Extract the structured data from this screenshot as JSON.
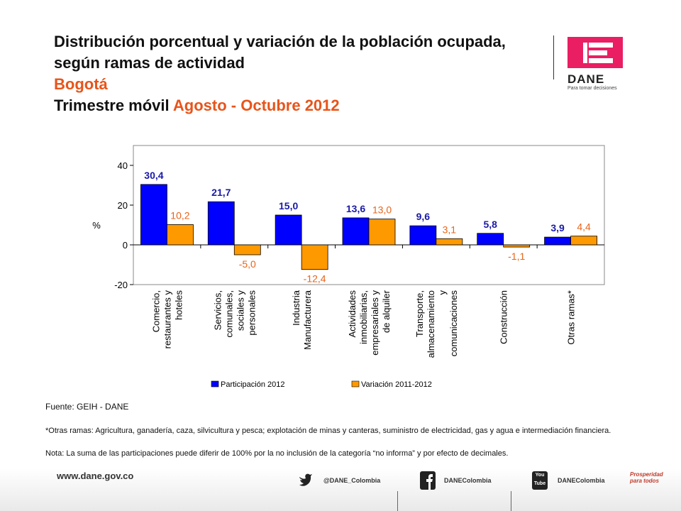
{
  "header": {
    "title_line1": "Distribución porcentual y variación de la población ocupada,",
    "title_line2": "según ramas de actividad",
    "city": "Bogotá",
    "period_prefix": "Trimestre móvil ",
    "period": "Agosto - Octubre 2012"
  },
  "logo": {
    "name": "DANE",
    "tagline": "Para tomar decisiones"
  },
  "chart_data": {
    "type": "bar",
    "title": "",
    "ylabel": "%",
    "ylim": [
      -20,
      50
    ],
    "yticks": [
      -20,
      0,
      20,
      40
    ],
    "grid": false,
    "legend_position": "bottom",
    "categories": [
      "Comercio, restaurantes y hoteles",
      "Servicios, comunales, sociales y personales",
      "Industria Manufacturera",
      "Actividades inmobiliarias, empresariales y de alquiler",
      "Transporte, almacenamiento y comunicaciones",
      "Construcción",
      "Otras ramas*"
    ],
    "category_lines": [
      [
        "Comercio,",
        "restaurantes y",
        "hoteles"
      ],
      [
        "Servicios,",
        "comunales,",
        "sociales y",
        "personales"
      ],
      [
        "Industria",
        "Manufacturera"
      ],
      [
        "Actividades",
        "inmobiliarias,",
        "empresariales y",
        "de alquiler"
      ],
      [
        "Transporte,",
        "almacenamiento",
        "y",
        "comunicaciones"
      ],
      [
        "Construcción"
      ],
      [
        "Otras ramas*"
      ]
    ],
    "series": [
      {
        "name": "Participación 2012",
        "color": "#0000ff",
        "values": [
          30.4,
          21.7,
          15.0,
          13.6,
          9.6,
          5.8,
          3.9
        ],
        "labels": [
          "30,4",
          "21,7",
          "15,0",
          "13,6",
          "9,6",
          "5,8",
          "3,9"
        ],
        "label_color": "#1a1aa8"
      },
      {
        "name": "Variación 2011-2012",
        "color": "#ff9900",
        "values": [
          10.2,
          -5.0,
          -12.4,
          13.0,
          3.1,
          -1.1,
          4.4
        ],
        "labels": [
          "10,2",
          "-5,0",
          "-12,4",
          "13,0",
          "3,1",
          "-1,1",
          "4,4"
        ],
        "label_color": "#e8641a"
      }
    ]
  },
  "notes": {
    "source": "Fuente: GEIH - DANE",
    "otras": "*Otras ramas: Agricultura, ganadería, caza, silvicultura y pesca; explotación de minas y canteras, suministro de electricidad, gas y agua e intermediación financiera.",
    "nota": "Nota: La suma de las participaciones puede diferir de 100%  por la no inclusión de la categoría “no informa” y por efecto de decimales."
  },
  "footer": {
    "url": "www.dane.gov.co",
    "twitter": "@DANE_Colombia",
    "facebook": "DANEColombia",
    "youtube": "DANEColombia",
    "youtube_icon_text": "You Tube",
    "prosperidad": "Prosperidad para todos"
  },
  "colors": {
    "accent": "#e8541a",
    "dane_pink": "#e91e63"
  }
}
